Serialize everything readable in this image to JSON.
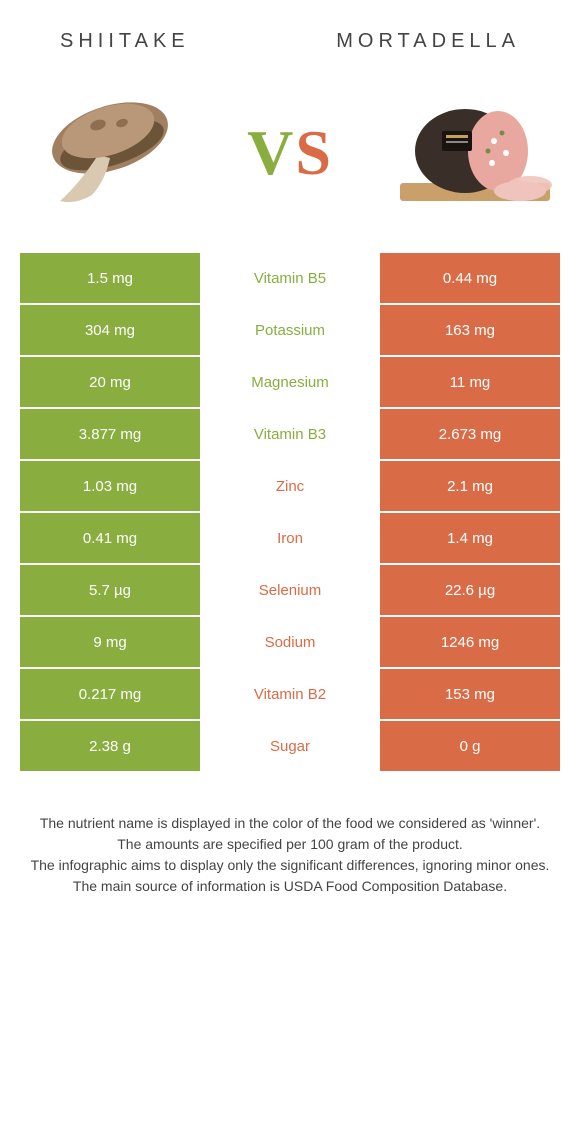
{
  "header": {
    "left_title": "SHIITAKE",
    "right_title": "MORTADELLA",
    "vs_v": "V",
    "vs_s": "S"
  },
  "colors": {
    "left": "#8aad3f",
    "right": "#d96c46",
    "mid_left_text": "#8aad3f",
    "mid_right_text": "#d96c46",
    "white": "#ffffff"
  },
  "rows": [
    {
      "left": "1.5 mg",
      "label": "Vitamin B5",
      "right": "0.44 mg",
      "winner": "left"
    },
    {
      "left": "304 mg",
      "label": "Potassium",
      "right": "163 mg",
      "winner": "left"
    },
    {
      "left": "20 mg",
      "label": "Magnesium",
      "right": "11 mg",
      "winner": "left"
    },
    {
      "left": "3.877 mg",
      "label": "Vitamin B3",
      "right": "2.673 mg",
      "winner": "left"
    },
    {
      "left": "1.03 mg",
      "label": "Zinc",
      "right": "2.1 mg",
      "winner": "right"
    },
    {
      "left": "0.41 mg",
      "label": "Iron",
      "right": "1.4 mg",
      "winner": "right"
    },
    {
      "left": "5.7 µg",
      "label": "Selenium",
      "right": "22.6 µg",
      "winner": "right"
    },
    {
      "left": "9 mg",
      "label": "Sodium",
      "right": "1246 mg",
      "winner": "right"
    },
    {
      "left": "0.217 mg",
      "label": "Vitamin B2",
      "right": "153 mg",
      "winner": "right"
    },
    {
      "left": "2.38 g",
      "label": "Sugar",
      "right": "0 g",
      "winner": "right"
    }
  ],
  "footer": {
    "line1": "The nutrient name is displayed in the color of the food we considered as 'winner'.",
    "line2": "The amounts are specified per 100 gram of the product.",
    "line3": "The infographic aims to display only the significant differences, ignoring minor ones.",
    "line4": "The main source of information is USDA Food Composition Database."
  }
}
